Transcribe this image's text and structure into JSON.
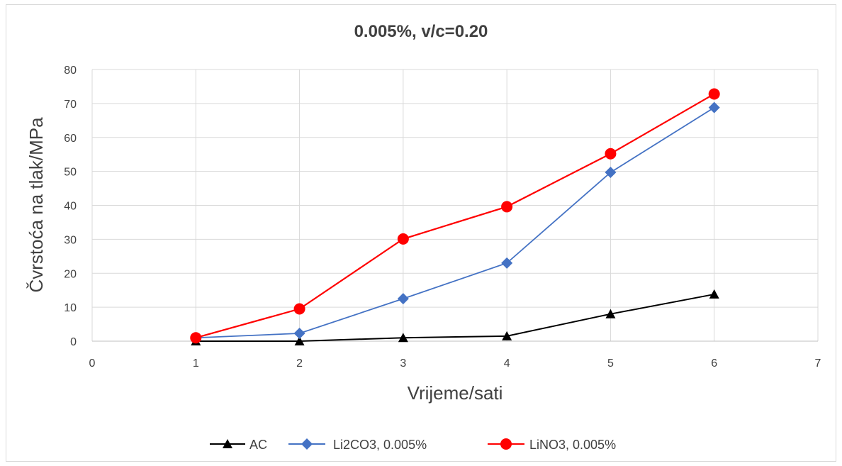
{
  "chart_data": {
    "type": "line",
    "title": "0.005%, v/c=0.20",
    "xlabel": "Vrijeme/sati",
    "ylabel": "Čvrstoća na tlak/MPa",
    "xlim": [
      0,
      7
    ],
    "ylim": [
      0,
      80
    ],
    "x_ticks": [
      0,
      1,
      2,
      3,
      4,
      5,
      6,
      7
    ],
    "y_ticks": [
      0,
      10,
      20,
      30,
      40,
      50,
      60,
      70,
      80
    ],
    "grid": true,
    "legend_position": "bottom",
    "x": [
      1,
      2,
      3,
      4,
      5,
      6
    ],
    "series": [
      {
        "name": "AC",
        "values": [
          0,
          0,
          1,
          1.5,
          8,
          13.8
        ],
        "color": "#000000",
        "marker": "triangle"
      },
      {
        "name": "Li2CO3, 0.005%",
        "values": [
          1,
          2.3,
          12.5,
          23,
          49.7,
          68.8
        ],
        "color": "#4472c4",
        "marker": "diamond"
      },
      {
        "name": "LiNO3, 0.005%",
        "values": [
          1,
          9.5,
          30.1,
          39.6,
          55.2,
          72.8
        ],
        "color": "#ff0000",
        "marker": "circle"
      }
    ]
  }
}
